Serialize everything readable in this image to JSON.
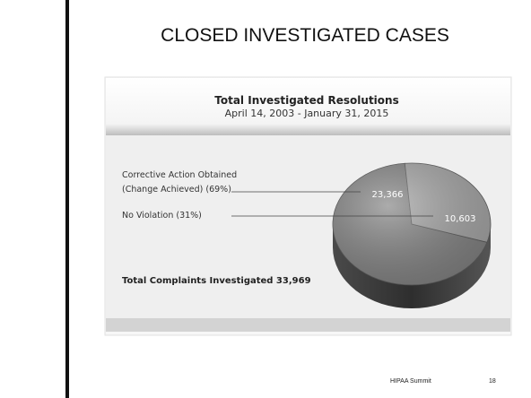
{
  "chart_data": {
    "type": "pie",
    "slide_title": "CLOSED INVESTIGATED CASES",
    "title": "Total Investigated Resolutions",
    "subtitle": "April 14, 2003 - January 31, 2015",
    "categories": [
      "Corrective Action Obtained (Change Achieved) (69%)",
      "No Violation (31%)"
    ],
    "values": [
      23366,
      10603
    ],
    "value_labels": [
      "23,366",
      "10,603"
    ],
    "colors": [
      "#7f7f7f",
      "#a3a3a3"
    ],
    "annotation": "Total Complaints Investigated 33,969",
    "footer": "HIPAA Summit",
    "page_number": "18"
  }
}
